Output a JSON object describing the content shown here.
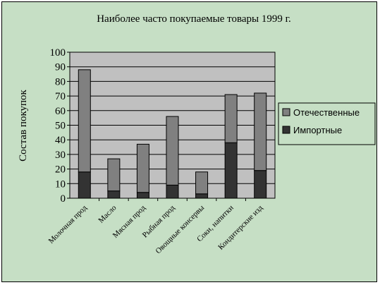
{
  "chart_data": {
    "type": "bar",
    "stacked": true,
    "title": "Наиболее часто покупаемые товары 1999 г.",
    "xlabel": "",
    "ylabel": "Состав покупок",
    "ylim": [
      0,
      100
    ],
    "yticks": [
      0,
      10,
      20,
      30,
      40,
      50,
      60,
      70,
      80,
      90,
      100
    ],
    "grid": true,
    "legend_position": "right",
    "categories": [
      "Молочная прод",
      "Масло",
      "Мясная прод",
      "Рыбная прод",
      "Овощные консервы",
      "Соки, напитки",
      "Кондитерские изд"
    ],
    "series": [
      {
        "name": "Импортные",
        "color": "#333333",
        "values": [
          18,
          5,
          4,
          9,
          3,
          38,
          19
        ]
      },
      {
        "name": "Отечественные",
        "color": "#808080",
        "values": [
          70,
          22,
          33,
          47,
          15,
          33,
          53
        ]
      }
    ],
    "legend_order": [
      1,
      0
    ],
    "plot_background": "#c0c0c0",
    "chart_background": "#c6dfc5"
  }
}
